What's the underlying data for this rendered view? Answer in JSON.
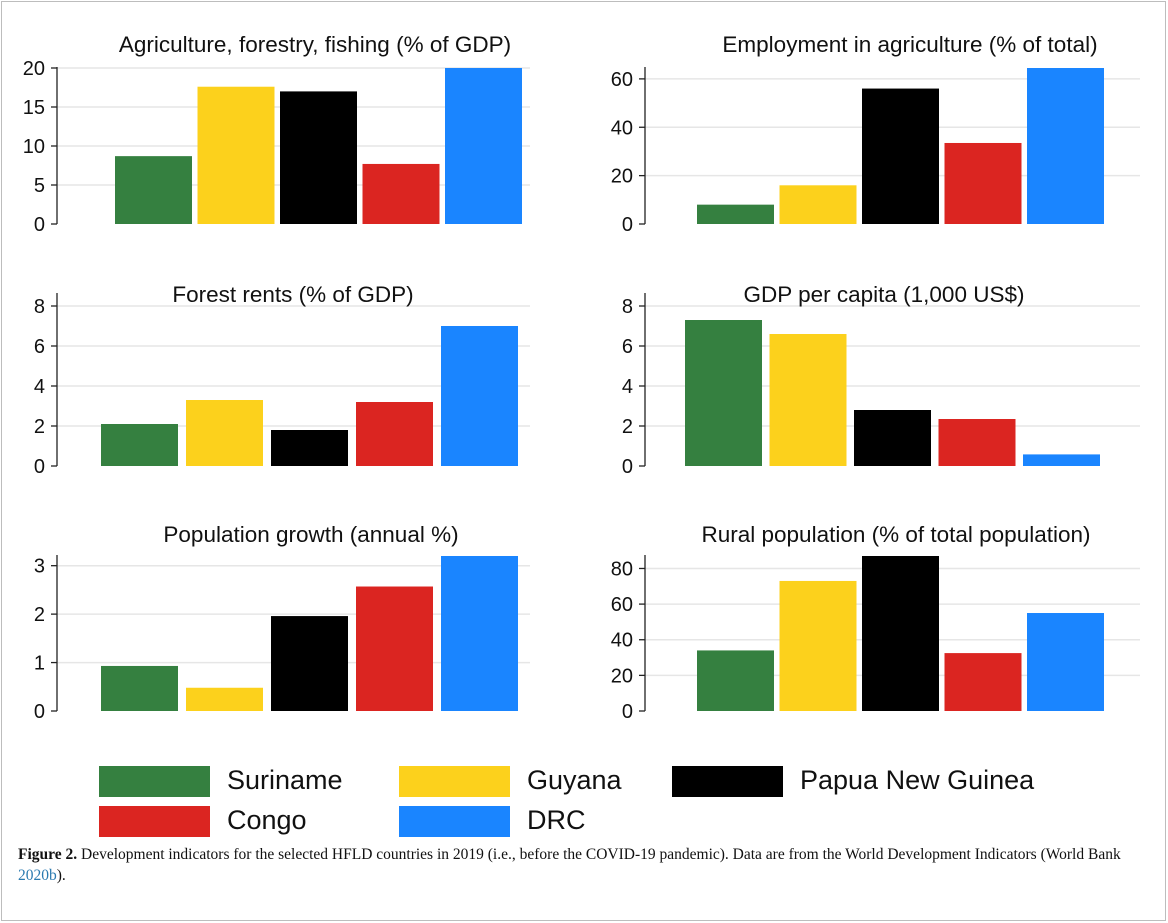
{
  "chart_data": [
    {
      "type": "bar",
      "title": "Agriculture, forestry, fishing (% of GDP)",
      "categories": [
        "Suriname",
        "Guyana",
        "Papua New Guinea",
        "Congo",
        "DRC"
      ],
      "values": [
        8.7,
        17.6,
        17.0,
        7.7,
        20.0
      ],
      "yticks": [
        0,
        5,
        10,
        15,
        20
      ],
      "ylim": [
        0,
        20
      ],
      "grid": true
    },
    {
      "type": "bar",
      "title": "Employment in agriculture (% of total)",
      "categories": [
        "Suriname",
        "Guyana",
        "Papua New Guinea",
        "Congo",
        "DRC"
      ],
      "values": [
        8,
        16,
        56,
        33.5,
        64.5
      ],
      "yticks": [
        0,
        20,
        40,
        60
      ],
      "ylim": [
        0,
        64.5
      ],
      "grid": true
    },
    {
      "type": "bar",
      "title": "Forest rents (% of GDP)",
      "categories": [
        "Suriname",
        "Guyana",
        "Papua New Guinea",
        "Congo",
        "DRC"
      ],
      "values": [
        2.1,
        3.3,
        1.8,
        3.2,
        7.0
      ],
      "yticks": [
        0,
        2,
        4,
        6,
        8
      ],
      "ylim": [
        0,
        8.6
      ],
      "grid": true
    },
    {
      "type": "bar",
      "title": "GDP per capita (1,000 US$)",
      "categories": [
        "Suriname",
        "Guyana",
        "Papua New Guinea",
        "Congo",
        "DRC"
      ],
      "values": [
        7.3,
        6.6,
        2.8,
        2.35,
        0.58
      ],
      "yticks": [
        0,
        2,
        4,
        6,
        8
      ],
      "ylim": [
        0,
        8.6
      ],
      "grid": true
    },
    {
      "type": "bar",
      "title": "Population growth (annual %)",
      "categories": [
        "Suriname",
        "Guyana",
        "Papua New Guinea",
        "Congo",
        "DRC"
      ],
      "values": [
        0.93,
        0.48,
        1.96,
        2.57,
        3.2
      ],
      "yticks": [
        0,
        1,
        2,
        3
      ],
      "ylim": [
        0,
        3.2
      ],
      "grid": true
    },
    {
      "type": "bar",
      "title": "Rural population (% of total population)",
      "categories": [
        "Suriname",
        "Guyana",
        "Papua New Guinea",
        "Congo",
        "DRC"
      ],
      "values": [
        34,
        73,
        87,
        32.5,
        55
      ],
      "yticks": [
        0,
        20,
        40,
        60,
        80
      ],
      "ylim": [
        0,
        87
      ],
      "grid": true
    }
  ],
  "series_colors": {
    "Suriname": "#358040",
    "Guyana": "#fcd11c",
    "Papua New Guinea": "#000000",
    "Congo": "#db2521",
    "DRC": "#1a85ff"
  },
  "legend": {
    "placement": "bottom",
    "items": [
      {
        "label": "Suriname",
        "color": "#358040"
      },
      {
        "label": "Guyana",
        "color": "#fcd11c"
      },
      {
        "label": "Papua New Guinea",
        "color": "#000000"
      },
      {
        "label": "Congo",
        "color": "#db2521"
      },
      {
        "label": "DRC",
        "color": "#1a85ff"
      }
    ]
  },
  "caption": {
    "label": "Figure 2.",
    "text": " Development indicators for the selected HFLD countries in 2019 (i.e., before the COVID-19 pandemic). Data are from the World Development Indicators (World Bank ",
    "citation": "2020b",
    "end": ")."
  }
}
